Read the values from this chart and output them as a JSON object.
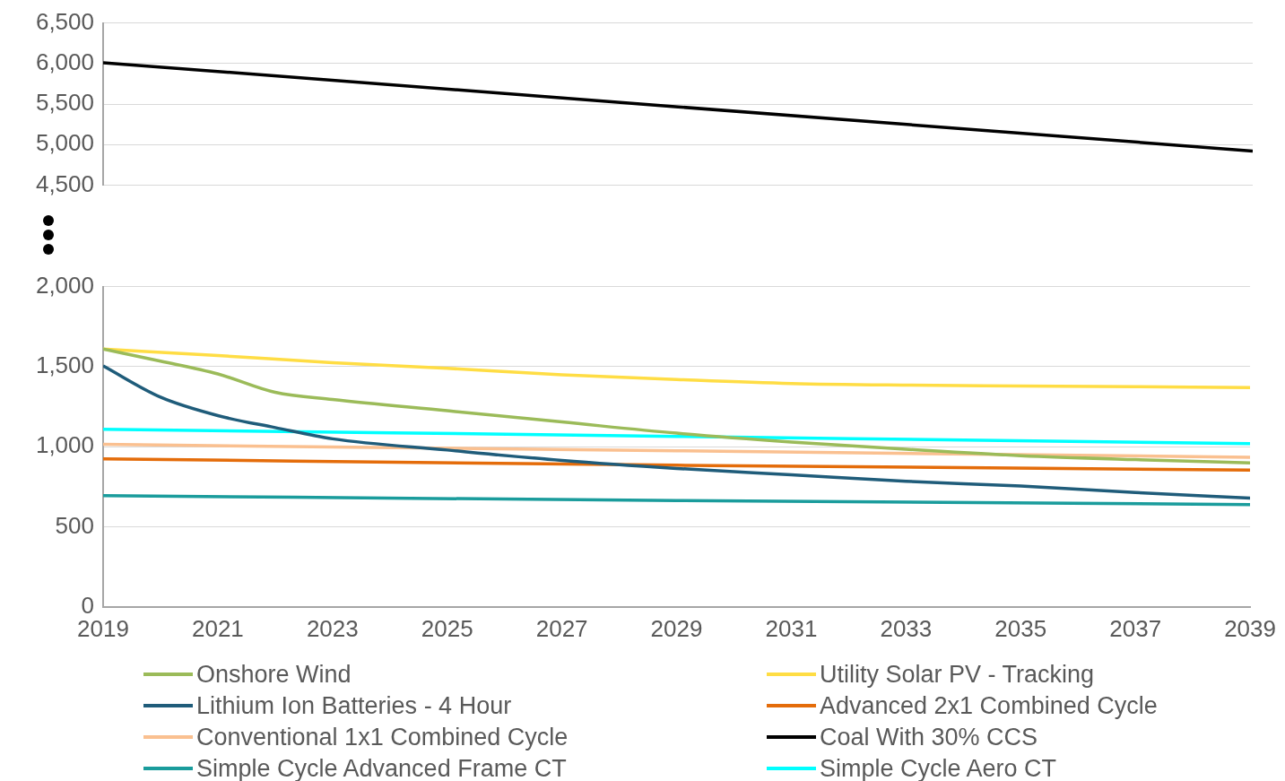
{
  "chart_data": [
    {
      "type": "line",
      "xlim": [
        2019,
        2039
      ],
      "ylim": [
        4500,
        6500
      ],
      "yticks": [
        {
          "value": 4500,
          "label": "4,500"
        },
        {
          "value": 5000,
          "label": "5,000"
        },
        {
          "value": 5500,
          "label": "5,500"
        },
        {
          "value": 6000,
          "label": "6,000"
        },
        {
          "value": 6500,
          "label": "6,500"
        }
      ],
      "grid": "y",
      "tick_labels": "y",
      "legend": "bottom",
      "series": [
        {
          "name": "Coal With 30% CCS",
          "color": "#000000",
          "x": [
            2019,
            2039
          ],
          "values": [
            6010,
            4920
          ]
        }
      ]
    },
    {
      "type": "line",
      "xlim": [
        2019,
        2039
      ],
      "xticks": [
        2019,
        2021,
        2023,
        2025,
        2027,
        2029,
        2031,
        2033,
        2035,
        2037,
        2039
      ],
      "ylim": [
        0,
        2000
      ],
      "yticks": [
        0,
        500,
        {
          "value": 1000,
          "label": "1,000"
        },
        {
          "value": 1500,
          "label": "1,500"
        },
        {
          "value": 2000,
          "label": "2,000"
        }
      ],
      "grid": "y",
      "legend": "bottom",
      "series": [
        {
          "name": "Onshore Wind",
          "color": "#9bbb59",
          "x": [
            2019,
            2020,
            2021,
            2022,
            2023,
            2025,
            2027,
            2029,
            2031,
            2033,
            2035,
            2037,
            2039
          ],
          "values": [
            1610,
            1535,
            1455,
            1340,
            1295,
            1225,
            1155,
            1085,
            1030,
            985,
            945,
            920,
            900
          ]
        },
        {
          "name": "Utility Solar PV - Tracking",
          "color": "#ffdd44",
          "x": [
            2019,
            2021,
            2023,
            2025,
            2027,
            2029,
            2031,
            2033,
            2035,
            2037,
            2039
          ],
          "values": [
            1610,
            1570,
            1525,
            1490,
            1450,
            1420,
            1395,
            1385,
            1380,
            1375,
            1370
          ]
        },
        {
          "name": "Lithium Ion Batteries - 4 Hour",
          "color": "#1f5c7a",
          "x": [
            2019,
            2020,
            2021,
            2022,
            2023,
            2025,
            2027,
            2029,
            2031,
            2033,
            2035,
            2037,
            2039
          ],
          "values": [
            1505,
            1310,
            1195,
            1120,
            1050,
            980,
            915,
            865,
            825,
            785,
            755,
            715,
            680
          ]
        },
        {
          "name": "Advanced 2x1 Combined Cycle",
          "color": "#e46c0a",
          "x": [
            2019,
            2029,
            2039
          ],
          "values": [
            925,
            885,
            855
          ]
        },
        {
          "name": "Conventional 1x1 Combined Cycle",
          "color": "#fac090",
          "x": [
            2019,
            2029,
            2039
          ],
          "values": [
            1015,
            975,
            935
          ]
        },
        {
          "name": "Simple Cycle Advanced Frame CT",
          "color": "#1a9c9c",
          "x": [
            2019,
            2029,
            2039
          ],
          "values": [
            695,
            665,
            640
          ]
        },
        {
          "name": "Simple Cycle Aero CT",
          "color": "#00ffff",
          "x": [
            2019,
            2029,
            2039
          ],
          "values": [
            1110,
            1065,
            1020
          ]
        }
      ]
    }
  ]
}
